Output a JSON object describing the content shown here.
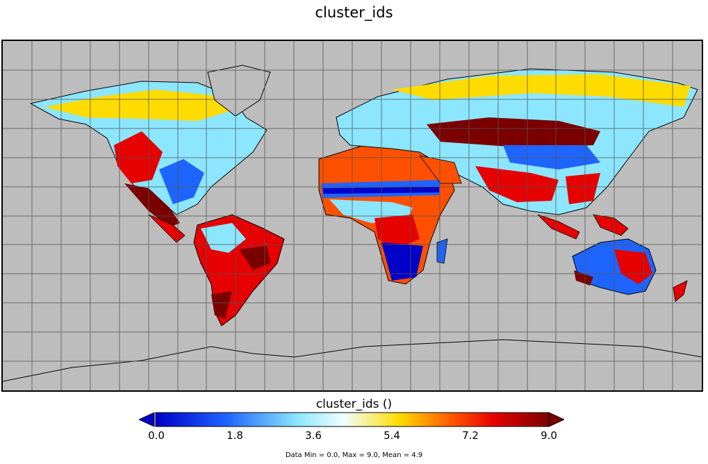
{
  "header": {
    "title": "cluster_ids"
  },
  "map": {
    "ocean_color": "#bdbdbd",
    "grid": true,
    "projection": "equirectangular (global lat/lon)",
    "variable": "cluster_ids"
  },
  "colorbar": {
    "title": "cluster_ids ()",
    "ticks": [
      "0.0",
      "1.8",
      "3.6",
      "5.4",
      "7.2",
      "9.0"
    ],
    "min": 0.0,
    "max": 9.0,
    "colors": [
      "#0000c8",
      "#1e64ff",
      "#8ce6ff",
      "#f0ffff",
      "#ffdc00",
      "#ff5000",
      "#e60000",
      "#7a0000"
    ],
    "extend": "both"
  },
  "stats": {
    "text": "Data Min = 0.0, Max = 9.0, Mean = 4.9"
  }
}
